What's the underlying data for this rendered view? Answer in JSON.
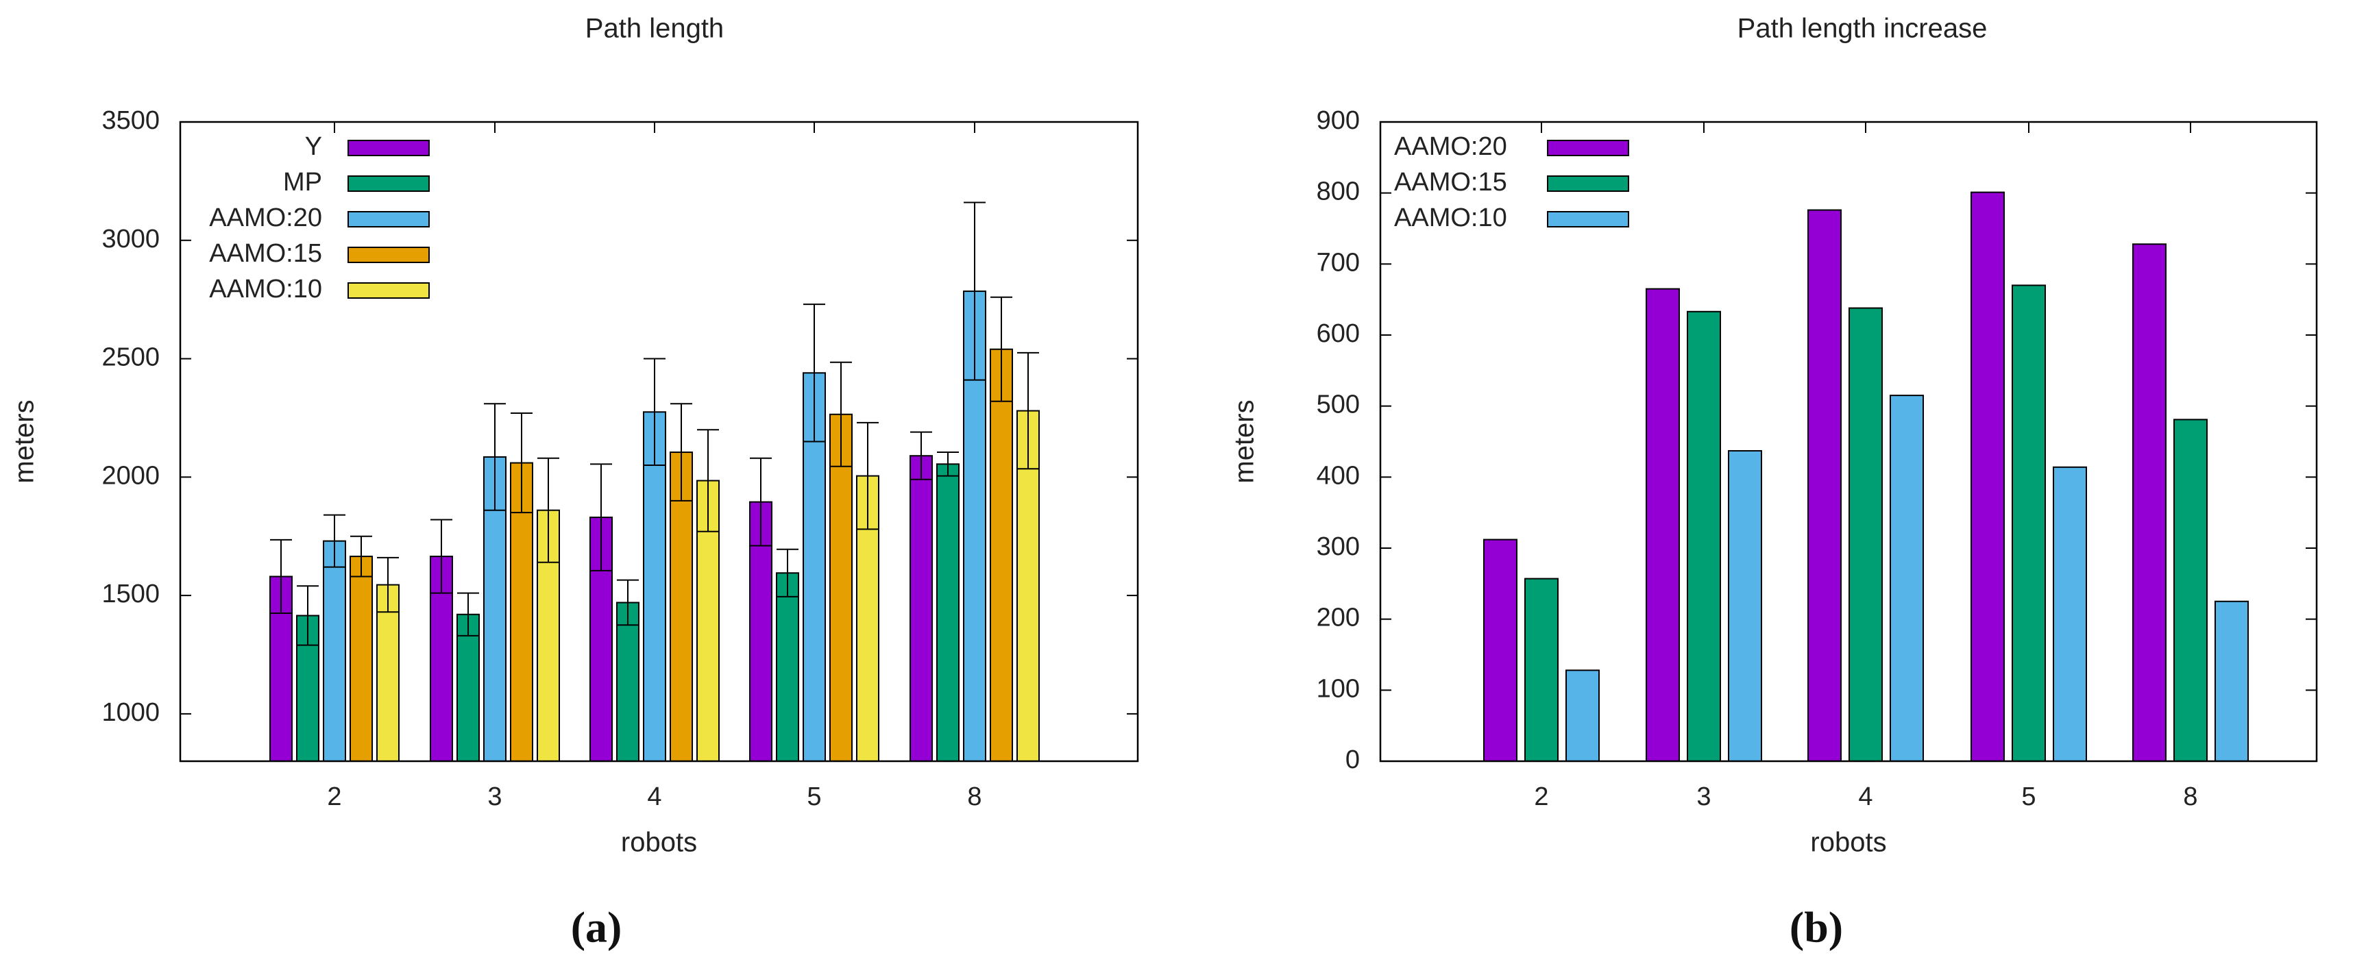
{
  "chart_data": [
    {
      "type": "bar",
      "title": "Path length",
      "xlabel": "robots",
      "ylabel": "meters",
      "panel_label": "a",
      "categories": [
        "2",
        "3",
        "4",
        "5",
        "8"
      ],
      "ylim": [
        800,
        3500
      ],
      "yticks": [
        1000,
        1500,
        2000,
        2500,
        3000,
        3500
      ],
      "error_bars": true,
      "legend_position": "top-left",
      "series": [
        {
          "name": "Y",
          "color": "#9400d3",
          "values": [
            1580,
            1665,
            1830,
            1895,
            2090
          ],
          "errors": [
            155,
            155,
            225,
            185,
            100
          ]
        },
        {
          "name": "MP",
          "color": "#009e73",
          "values": [
            1415,
            1420,
            1470,
            1595,
            2055
          ],
          "errors": [
            125,
            90,
            95,
            100,
            50
          ]
        },
        {
          "name": "AAMO:20",
          "color": "#56b4e9",
          "values": [
            1730,
            2085,
            2275,
            2440,
            2785
          ],
          "errors": [
            110,
            225,
            225,
            290,
            375
          ]
        },
        {
          "name": "AAMO:15",
          "color": "#e69f00",
          "values": [
            1665,
            2060,
            2105,
            2265,
            2540
          ],
          "errors": [
            85,
            210,
            205,
            220,
            220
          ]
        },
        {
          "name": "AAMO:10",
          "color": "#f0e442",
          "values": [
            1545,
            1860,
            1985,
            2005,
            2280
          ],
          "errors": [
            115,
            220,
            215,
            225,
            245
          ]
        }
      ]
    },
    {
      "type": "bar",
      "title": "Path length increase",
      "xlabel": "robots",
      "ylabel": "meters",
      "panel_label": "b",
      "categories": [
        "2",
        "3",
        "4",
        "5",
        "8"
      ],
      "ylim": [
        0,
        900
      ],
      "yticks": [
        0,
        100,
        200,
        300,
        400,
        500,
        600,
        700,
        800,
        900
      ],
      "error_bars": false,
      "legend_position": "top-left",
      "series": [
        {
          "name": "AAMO:20",
          "color": "#9400d3",
          "values": [
            312,
            665,
            776,
            801,
            728
          ]
        },
        {
          "name": "AAMO:15",
          "color": "#009e73",
          "values": [
            257,
            633,
            638,
            670,
            481
          ]
        },
        {
          "name": "AAMO:10",
          "color": "#56b4e9",
          "values": [
            128,
            437,
            515,
            414,
            225
          ]
        }
      ]
    }
  ]
}
